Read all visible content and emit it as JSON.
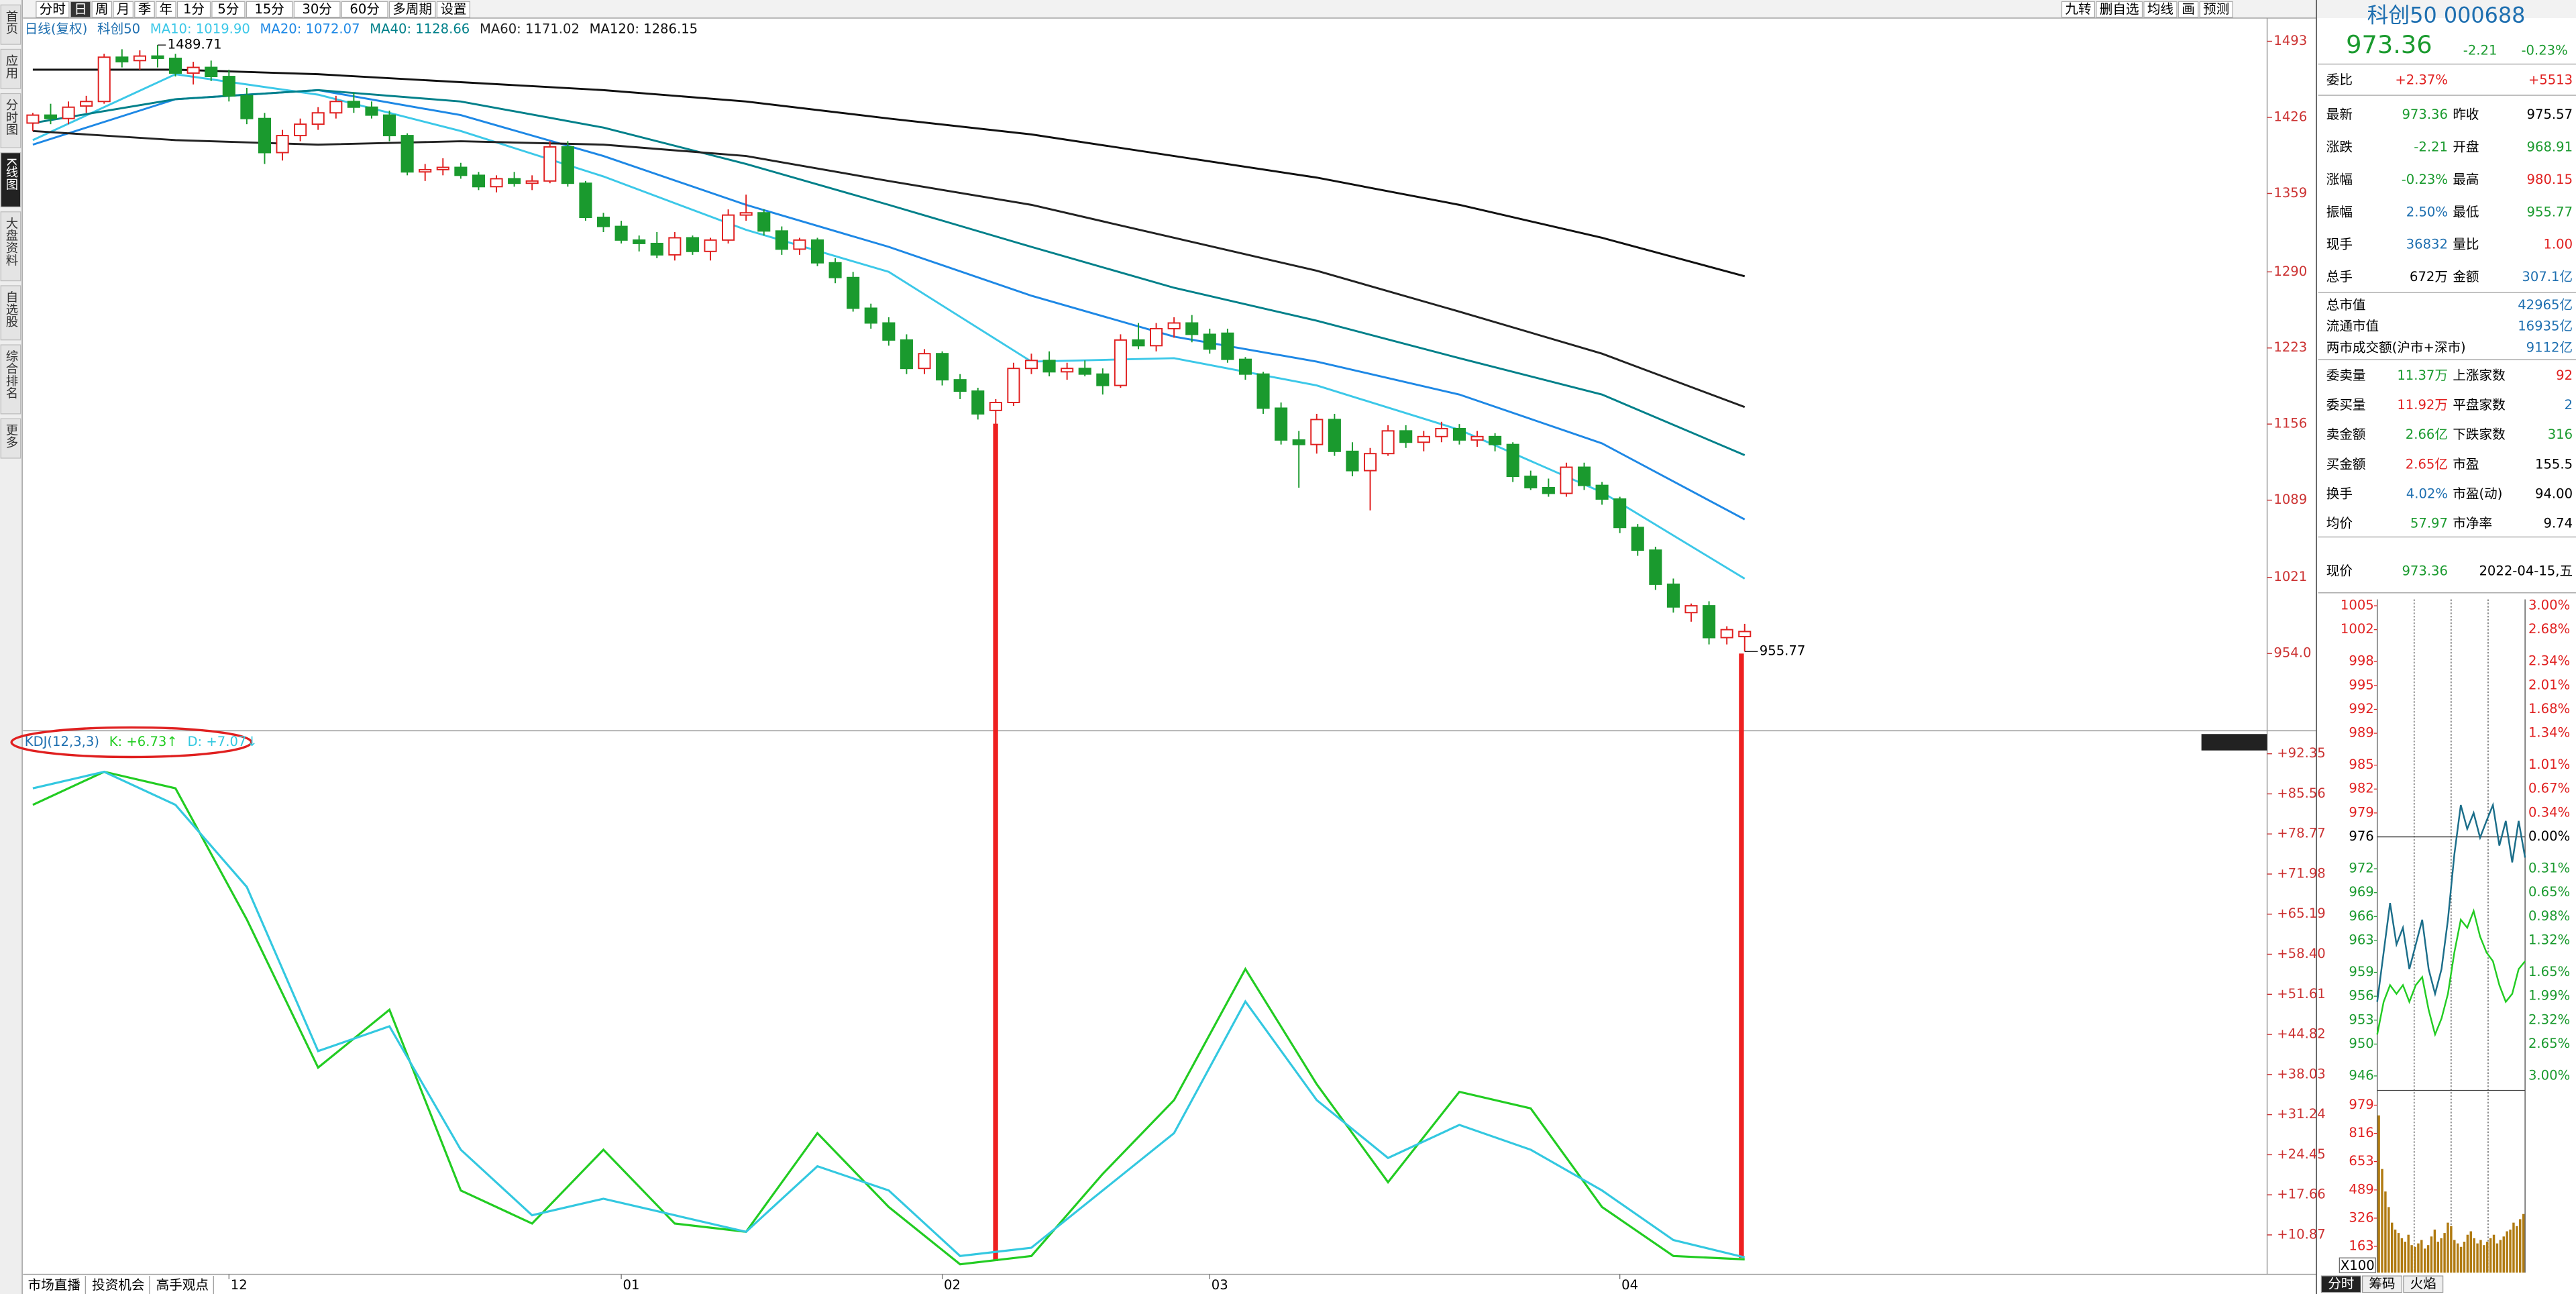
{
  "toolbar": {
    "left": [
      "分时",
      "日",
      "周",
      "月",
      "季",
      "年",
      "1分",
      "5分",
      "15分",
      "30分",
      "60分",
      "多周期",
      "设置"
    ],
    "active": 1,
    "right": [
      "九转",
      "删自选",
      "均线",
      "画",
      "预测"
    ]
  },
  "sidebar": {
    "tabs": [
      "首页",
      "应用",
      "分时图",
      "K线图",
      "大盘资料",
      "自选股",
      "综合排名",
      "更多"
    ],
    "active": 3
  },
  "chart": {
    "type": "candlestick",
    "period": "日线(复权)",
    "symbol": "科创50",
    "up_color": "#e02020",
    "down_color": "#1a9a2e",
    "xlim": [
      -0.55,
      125.3
    ],
    "ylim": [
      886,
      1512
    ],
    "yticks": [
      1493,
      1426,
      1359,
      1290,
      1223,
      1156,
      1089,
      1021,
      {
        "value": 954,
        "label": "954.0"
      }
    ],
    "ohlc": [
      [
        1421,
        1430,
        1414,
        1428
      ],
      [
        1428,
        1438,
        1420,
        1425
      ],
      [
        1425,
        1440,
        1420,
        1435
      ],
      [
        1436,
        1445,
        1430,
        1440
      ],
      [
        1440,
        1482,
        1438,
        1479
      ],
      [
        1479,
        1486,
        1470,
        1475
      ],
      [
        1476,
        1485,
        1468,
        1480
      ],
      [
        1480,
        1489.71,
        1470,
        1478
      ],
      [
        1478,
        1482,
        1462,
        1465
      ],
      [
        1465,
        1475,
        1455,
        1470
      ],
      [
        1470,
        1476,
        1458,
        1462
      ],
      [
        1462,
        1468,
        1440,
        1445
      ],
      [
        1445,
        1452,
        1420,
        1425
      ],
      [
        1425,
        1430,
        1385,
        1395
      ],
      [
        1395,
        1415,
        1388,
        1410
      ],
      [
        1410,
        1425,
        1405,
        1420
      ],
      [
        1420,
        1435,
        1415,
        1430
      ],
      [
        1430,
        1445,
        1425,
        1440
      ],
      [
        1440,
        1448,
        1430,
        1435
      ],
      [
        1435,
        1440,
        1425,
        1428
      ],
      [
        1428,
        1432,
        1405,
        1410
      ],
      [
        1410,
        1412,
        1375,
        1378
      ],
      [
        1378,
        1385,
        1370,
        1380
      ],
      [
        1380,
        1390,
        1375,
        1382
      ],
      [
        1382,
        1386,
        1372,
        1375
      ],
      [
        1375,
        1378,
        1362,
        1365
      ],
      [
        1365,
        1375,
        1360,
        1372
      ],
      [
        1372,
        1378,
        1365,
        1368
      ],
      [
        1368,
        1375,
        1362,
        1370
      ],
      [
        1370,
        1405,
        1368,
        1400
      ],
      [
        1400,
        1405,
        1365,
        1368
      ],
      [
        1368,
        1370,
        1335,
        1338
      ],
      [
        1338,
        1342,
        1325,
        1330
      ],
      [
        1330,
        1335,
        1315,
        1318
      ],
      [
        1318,
        1322,
        1308,
        1315
      ],
      [
        1315,
        1325,
        1302,
        1305
      ],
      [
        1305,
        1325,
        1300,
        1320
      ],
      [
        1320,
        1322,
        1305,
        1308
      ],
      [
        1308,
        1320,
        1300,
        1318
      ],
      [
        1318,
        1345,
        1315,
        1340
      ],
      [
        1340,
        1358,
        1335,
        1342
      ],
      [
        1342,
        1345,
        1322,
        1326
      ],
      [
        1326,
        1330,
        1305,
        1310
      ],
      [
        1310,
        1320,
        1305,
        1318
      ],
      [
        1318,
        1320,
        1295,
        1298
      ],
      [
        1298,
        1302,
        1280,
        1285
      ],
      [
        1285,
        1290,
        1255,
        1258
      ],
      [
        1258,
        1262,
        1240,
        1245
      ],
      [
        1245,
        1250,
        1225,
        1230
      ],
      [
        1230,
        1235,
        1200,
        1205
      ],
      [
        1205,
        1222,
        1200,
        1218
      ],
      [
        1218,
        1220,
        1190,
        1195
      ],
      [
        1195,
        1200,
        1178,
        1185
      ],
      [
        1185,
        1188,
        1160,
        1165
      ],
      [
        1168,
        1178,
        1156,
        1175
      ],
      [
        1175,
        1210,
        1172,
        1205
      ],
      [
        1205,
        1218,
        1200,
        1212
      ],
      [
        1212,
        1220,
        1198,
        1202
      ],
      [
        1202,
        1210,
        1195,
        1205
      ],
      [
        1205,
        1212,
        1198,
        1200
      ],
      [
        1200,
        1205,
        1182,
        1190
      ],
      [
        1190,
        1235,
        1188,
        1230
      ],
      [
        1230,
        1245,
        1222,
        1225
      ],
      [
        1225,
        1245,
        1220,
        1240
      ],
      [
        1240,
        1250,
        1232,
        1245
      ],
      [
        1245,
        1252,
        1228,
        1235
      ],
      [
        1235,
        1240,
        1218,
        1222
      ],
      [
        1236,
        1240,
        1210,
        1213
      ],
      [
        1213,
        1215,
        1195,
        1200
      ],
      [
        1200,
        1202,
        1165,
        1170
      ],
      [
        1170,
        1175,
        1138,
        1142
      ],
      [
        1142,
        1150,
        1100,
        1138
      ],
      [
        1138,
        1165,
        1130,
        1160
      ],
      [
        1160,
        1165,
        1128,
        1132
      ],
      [
        1132,
        1140,
        1110,
        1115
      ],
      [
        1115,
        1135,
        1080,
        1130
      ],
      [
        1130,
        1155,
        1128,
        1150
      ],
      [
        1150,
        1155,
        1135,
        1140
      ],
      [
        1140,
        1150,
        1132,
        1145
      ],
      [
        1145,
        1158,
        1140,
        1152
      ],
      [
        1152,
        1156,
        1138,
        1142
      ],
      [
        1142,
        1150,
        1136,
        1145
      ],
      [
        1145,
        1148,
        1132,
        1138
      ],
      [
        1138,
        1140,
        1105,
        1110
      ],
      [
        1110,
        1115,
        1098,
        1100
      ],
      [
        1100,
        1108,
        1092,
        1095
      ],
      [
        1095,
        1122,
        1092,
        1118
      ],
      [
        1118,
        1122,
        1098,
        1102
      ],
      [
        1102,
        1105,
        1085,
        1090
      ],
      [
        1090,
        1092,
        1060,
        1065
      ],
      [
        1065,
        1068,
        1040,
        1045
      ],
      [
        1045,
        1048,
        1010,
        1015
      ],
      [
        1015,
        1020,
        990,
        995
      ],
      [
        990,
        998,
        982,
        996
      ],
      [
        996,
        1000,
        962,
        968
      ],
      [
        968,
        978,
        962,
        975
      ],
      [
        968.91,
        980.15,
        955.77,
        973.36
      ]
    ],
    "max": {
      "index": 7,
      "value": 1489.71
    },
    "min": {
      "index": 96,
      "value": 955.77
    },
    "overlays": [
      {
        "name": "MA10: 1019.90",
        "color": "#3cc8e8",
        "x": [
          0,
          8,
          16,
          24,
          32,
          40,
          48,
          56,
          64,
          72,
          80,
          88,
          96
        ],
        "values": [
          1406,
          1464,
          1446,
          1414,
          1374,
          1327,
          1290,
          1211,
          1214,
          1190,
          1151,
          1096,
          1019.9
        ]
      },
      {
        "name": "MA20: 1072.07",
        "color": "#1e88e5",
        "x": [
          0,
          8,
          16,
          24,
          32,
          40,
          48,
          56,
          64,
          72,
          80,
          88,
          96
        ],
        "values": [
          1402,
          1442,
          1450,
          1428,
          1392,
          1349,
          1312,
          1269,
          1233,
          1211,
          1182,
          1139,
          1072.07
        ]
      },
      {
        "name": "MA40: 1128.66",
        "color": "#00808a",
        "x": [
          0,
          8,
          16,
          24,
          32,
          40,
          48,
          56,
          64,
          72,
          80,
          88,
          96
        ],
        "values": [
          1421,
          1442,
          1450,
          1440,
          1417,
          1385,
          1349,
          1312,
          1276,
          1247,
          1214,
          1182,
          1128.66
        ]
      },
      {
        "name": "MA60: 1171.02",
        "color": "#222222",
        "x": [
          0,
          8,
          16,
          24,
          32,
          40,
          48,
          56,
          64,
          72,
          80,
          88,
          96
        ],
        "values": [
          1414,
          1406,
          1402,
          1405,
          1402,
          1392,
          1370,
          1349,
          1320,
          1291,
          1255,
          1218,
          1171.02
        ]
      },
      {
        "name": "MA120: 1286.15",
        "color": "#111111",
        "x": [
          0,
          8,
          16,
          24,
          32,
          40,
          48,
          56,
          64,
          72,
          80,
          88,
          96
        ],
        "values": [
          1468,
          1468,
          1464,
          1457,
          1450,
          1440,
          1425,
          1411,
          1392,
          1373,
          1349,
          1320,
          1286.15
        ]
      }
    ],
    "dates": [
      {
        "index": 11,
        "label": "12"
      },
      {
        "index": 33,
        "label": "01"
      },
      {
        "index": 51,
        "label": "02"
      },
      {
        "index": 66,
        "label": "03"
      },
      {
        "index": 89,
        "label": "04"
      }
    ]
  },
  "indicator": {
    "type": "line",
    "title": "KDJ(12,3,3)",
    "ylim": [
      4.48,
      95.97
    ],
    "yticks": [
      {
        "value": 92.35,
        "label": "+92.35"
      },
      {
        "value": 85.56,
        "label": "+85.56"
      },
      {
        "value": 78.77,
        "label": "+78.77"
      },
      {
        "value": 71.98,
        "label": "+71.98"
      },
      {
        "value": 65.19,
        "label": "+65.19"
      },
      {
        "value": 58.4,
        "label": "+58.40"
      },
      {
        "value": 51.61,
        "label": "+51.61"
      },
      {
        "value": 44.82,
        "label": "+44.82"
      },
      {
        "value": 38.03,
        "label": "+38.03"
      },
      {
        "value": 31.24,
        "label": "+31.24"
      },
      {
        "value": 24.45,
        "label": "+24.45"
      },
      {
        "value": 17.66,
        "label": "+17.66"
      },
      {
        "value": 10.87,
        "label": "+10.87"
      }
    ],
    "series": [
      {
        "name": "K: +6.73↑",
        "color": "#22cc22",
        "x": [
          0,
          4,
          8,
          12,
          16,
          20,
          24,
          28,
          32,
          36,
          40,
          44,
          48,
          52,
          56,
          60,
          64,
          68,
          72,
          76,
          80,
          84,
          88,
          92,
          96
        ],
        "values": [
          83.7,
          89.3,
          86.5,
          64.3,
          39.2,
          49.0,
          18.4,
          12.8,
          25.3,
          12.8,
          11.4,
          28.1,
          15.6,
          5.9,
          7.3,
          21.2,
          33.7,
          55.9,
          36.4,
          19.8,
          35.1,
          32.3,
          15.6,
          7.3,
          6.73
        ]
      },
      {
        "name": "D: +7.07↓",
        "color": "#33c8e0",
        "x": [
          0,
          4,
          8,
          12,
          16,
          20,
          24,
          28,
          32,
          36,
          40,
          44,
          48,
          52,
          56,
          60,
          64,
          68,
          72,
          76,
          80,
          84,
          88,
          92,
          96
        ],
        "values": [
          86.5,
          89.3,
          83.7,
          69.8,
          42.0,
          46.2,
          25.3,
          14.2,
          17.0,
          14.2,
          11.4,
          22.5,
          18.4,
          7.3,
          8.7,
          18.4,
          28.1,
          50.4,
          33.7,
          23.9,
          29.5,
          25.3,
          18.4,
          10.0,
          7.07
        ]
      }
    ]
  },
  "bottom_tabs": [
    "市场直播",
    "投资机会",
    "高手观点"
  ],
  "quote": {
    "title": "科创50 000688",
    "price": "973.36",
    "change": "-2.21",
    "pct": "-0.23%",
    "weibi": {
      "label": "委比",
      "v1": "+2.37%",
      "v2": "+5513"
    },
    "rows1": [
      {
        "l1": "最新",
        "v1": "973.36",
        "c1": "#1a9a2e",
        "l2": "昨收",
        "v2": "975.57",
        "c2": "#000"
      },
      {
        "l1": "涨跌",
        "v1": "-2.21",
        "c1": "#1a9a2e",
        "l2": "开盘",
        "v2": "968.91",
        "c2": "#1a9a2e"
      },
      {
        "l1": "涨幅",
        "v1": "-0.23%",
        "c1": "#1a9a2e",
        "l2": "最高",
        "v2": "980.15",
        "c2": "#e02020"
      },
      {
        "l1": "振幅",
        "v1": "2.50%",
        "c1": "#1e6fb0",
        "l2": "最低",
        "v2": "955.77",
        "c2": "#1a9a2e"
      },
      {
        "l1": "现手",
        "v1": "36832",
        "c1": "#1e6fb0",
        "l2": "量比",
        "v2": "1.00",
        "c2": "#e02020"
      },
      {
        "l1": "总手",
        "v1": "672万",
        "c1": "#000",
        "l2": "金额",
        "v2": "307.1亿",
        "c2": "#1e6fb0"
      }
    ],
    "market": [
      {
        "label": "总市值",
        "value": "42965亿"
      },
      {
        "label": "流通市值",
        "value": "16935亿"
      },
      {
        "label": "两市成交额(沪市+深市)",
        "value": "9112亿"
      }
    ],
    "rows2": [
      {
        "l1": "委卖量",
        "v1": "11.37万",
        "c1": "#1a9a2e",
        "l2": "上涨家数",
        "v2": "92",
        "c2": "#e02020"
      },
      {
        "l1": "委买量",
        "v1": "11.92万",
        "c1": "#e02020",
        "l2": "平盘家数",
        "v2": "2",
        "c2": "#1e6fb0"
      },
      {
        "l1": "卖金额",
        "v1": "2.66亿",
        "c1": "#1a9a2e",
        "l2": "下跌家数",
        "v2": "316",
        "c2": "#1a9a2e"
      },
      {
        "l1": "买金额",
        "v1": "2.65亿",
        "c1": "#e02020",
        "l2": "市盈",
        "v2": "155.5",
        "c2": "#000"
      },
      {
        "l1": "换手",
        "v1": "4.02%",
        "c1": "#1e6fb0",
        "l2": "市盈(动)",
        "v2": "94.00",
        "c2": "#000"
      },
      {
        "l1": "均价",
        "v1": "57.97",
        "c1": "#1a9a2e",
        "l2": "市净率",
        "v2": "9.74",
        "c2": "#000"
      }
    ],
    "now": {
      "label": "现价",
      "value": "973.36",
      "date": "2022-04-15,五"
    }
  },
  "intraday": {
    "type": "line",
    "xlim": [
      0,
      23
    ],
    "ylim": [
      944.6,
      1005.8
    ],
    "ref_tick": 9,
    "yticks": [
      1005,
      1002,
      998,
      995,
      992,
      989,
      985,
      982,
      979,
      976,
      972,
      969,
      966,
      963,
      959,
      956,
      953,
      950,
      946
    ],
    "pct_labels": [
      "3.00%",
      "2.68%",
      "2.34%",
      "2.01%",
      "1.68%",
      "1.34%",
      "1.01%",
      "0.67%",
      "0.34%",
      "0.00%",
      "0.31%",
      "0.65%",
      "0.98%",
      "1.32%",
      "1.65%",
      "1.99%",
      "2.32%",
      "2.65%",
      "3.00%"
    ],
    "series": [
      {
        "color": "#1b6e8a",
        "values": [
          955.3,
          961.5,
          967.7,
          962.5,
          964.6,
          959.4,
          962.5,
          965.6,
          959.4,
          956.3,
          959.4,
          965.6,
          973.8,
          980.0,
          977.0,
          979.0,
          975.9,
          978.0,
          980.0,
          974.9,
          978.0,
          972.8,
          978.0,
          973.4
        ]
      },
      {
        "color": "#22cc22",
        "values": [
          951.2,
          955.3,
          957.4,
          956.3,
          957.4,
          955.3,
          957.4,
          958.4,
          954.3,
          951.2,
          953.2,
          956.3,
          961.5,
          965.6,
          964.6,
          966.7,
          963.5,
          961.5,
          960.4,
          957.4,
          955.3,
          956.3,
          959.4,
          960.4
        ]
      }
    ],
    "volume": {
      "type": "bar",
      "color": "#b07a10",
      "ylim": [
        11,
        1055
      ],
      "yticks": [
        979,
        816,
        653,
        489,
        326,
        163
      ],
      "unit": "X100",
      "values": [
        920,
        610,
        480,
        390,
        300,
        260,
        240,
        210,
        190,
        230,
        170,
        160,
        180,
        200,
        150,
        170,
        220,
        260,
        190,
        210,
        240,
        300,
        280,
        200,
        180,
        160,
        190,
        230,
        250,
        210,
        180,
        200,
        170,
        190,
        210,
        230,
        180,
        200,
        220,
        250,
        260,
        300,
        280,
        320,
        350
      ]
    },
    "tabs": [
      "分时",
      "筹码",
      "火焰"
    ]
  }
}
